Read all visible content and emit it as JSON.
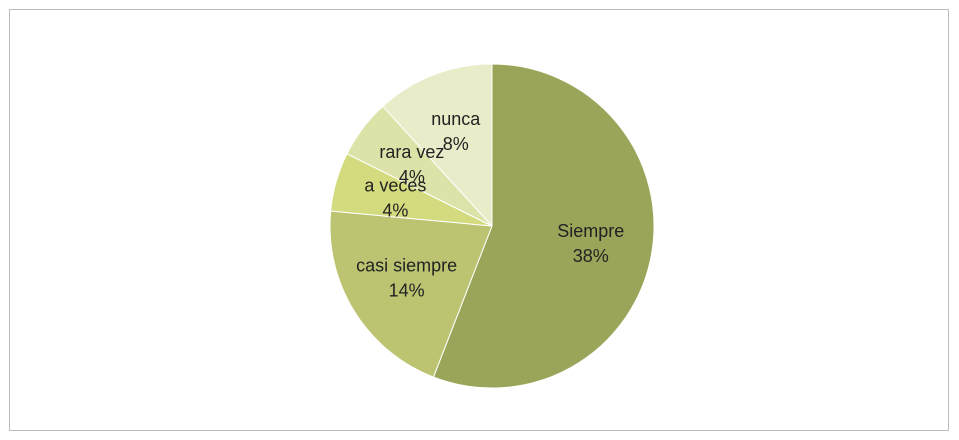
{
  "chart_data": {
    "type": "pie",
    "categories": [
      "Siempre",
      "casi siempre",
      "a veces",
      "rara vez",
      "nunca"
    ],
    "values": [
      38,
      14,
      4,
      4,
      8
    ],
    "value_labels": [
      "38%",
      "14%",
      "4%",
      "4%",
      "8%"
    ],
    "colors": [
      "#9ba55a",
      "#bcc472",
      "#d4db7e",
      "#dde3a8",
      "#e9ecc8"
    ]
  }
}
